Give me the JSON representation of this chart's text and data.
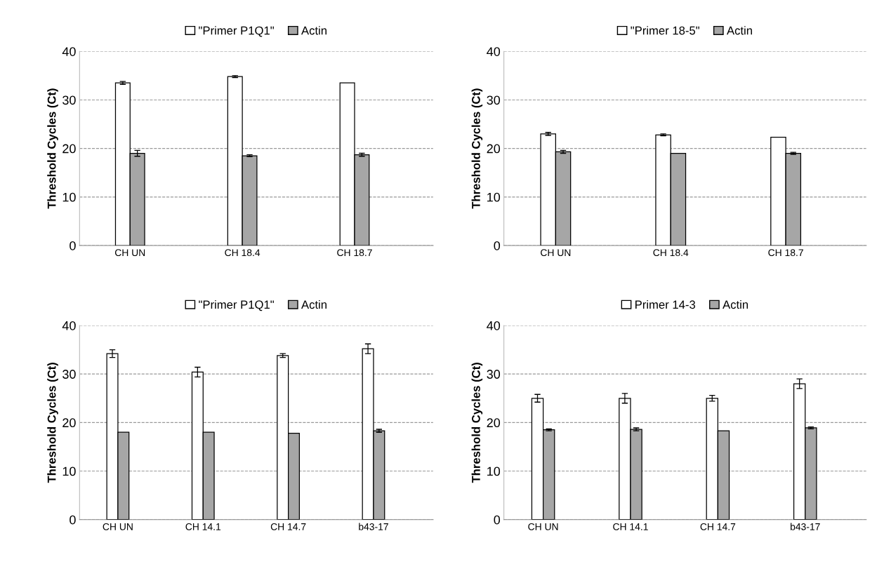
{
  "chart_data": [
    {
      "type": "bar",
      "categories": [
        "CH UN",
        "CH 18.4",
        "CH 18.7"
      ],
      "ylabel": "Threshold Cycles (Ct)",
      "ylim": [
        0,
        40
      ],
      "yticks": [
        0,
        10,
        20,
        30,
        40
      ],
      "grid": "y",
      "legend": "top",
      "series": [
        {
          "name": "\"Primer P1Q1\"",
          "color": "#ffffff",
          "values": [
            33.5,
            34.8,
            33.5
          ],
          "errors": [
            0.3,
            0.2,
            null
          ]
        },
        {
          "name": "Actin",
          "color": "#a6a6a6",
          "values": [
            19.0,
            18.5,
            18.7
          ],
          "errors": [
            0.6,
            0.2,
            0.3
          ]
        }
      ]
    },
    {
      "type": "bar",
      "categories": [
        "CH UN",
        "CH 18.4",
        "CH 18.7"
      ],
      "ylabel": "Threshold Cycles (Ct)",
      "ylim": [
        0,
        40
      ],
      "yticks": [
        0,
        10,
        20,
        30,
        40
      ],
      "grid": "y",
      "legend": "top",
      "series": [
        {
          "name": "\"Primer 18-5\"",
          "color": "#ffffff",
          "values": [
            23.0,
            22.8,
            22.3
          ],
          "errors": [
            0.3,
            0.2,
            null
          ]
        },
        {
          "name": "Actin",
          "color": "#a6a6a6",
          "values": [
            19.3,
            19.0,
            19.0
          ],
          "errors": [
            0.3,
            null,
            0.2
          ]
        }
      ]
    },
    {
      "type": "bar",
      "categories": [
        "CH UN",
        "CH 14.1",
        "CH 14.7",
        "b43-17"
      ],
      "ylabel": "Threshold Cycles (Ct)",
      "ylim": [
        0,
        40
      ],
      "yticks": [
        0,
        10,
        20,
        30,
        40
      ],
      "grid": "y",
      "legend": "top",
      "series": [
        {
          "name": "\"Primer P1Q1\"",
          "color": "#ffffff",
          "values": [
            34.2,
            30.4,
            33.8,
            35.2
          ],
          "errors": [
            0.8,
            1.0,
            0.4,
            1.0
          ]
        },
        {
          "name": "Actin",
          "color": "#a6a6a6",
          "values": [
            18.0,
            18.0,
            17.8,
            18.3
          ],
          "errors": [
            null,
            null,
            null,
            0.3
          ]
        }
      ]
    },
    {
      "type": "bar",
      "categories": [
        "CH UN",
        "CH 14.1",
        "CH 14.7",
        "b43-17"
      ],
      "ylabel": "Threshold Cycles (Ct)",
      "ylim": [
        0,
        40
      ],
      "yticks": [
        0,
        10,
        20,
        30,
        40
      ],
      "grid": "y",
      "legend": "top",
      "series": [
        {
          "name": "Primer 14-3",
          "color": "#ffffff",
          "values": [
            25.0,
            25.0,
            25.0,
            28.0
          ],
          "errors": [
            0.8,
            1.0,
            0.6,
            1.0
          ]
        },
        {
          "name": "Actin",
          "color": "#a6a6a6",
          "values": [
            18.5,
            18.6,
            18.3,
            18.9
          ],
          "errors": [
            0.2,
            0.3,
            null,
            0.2
          ]
        }
      ]
    }
  ]
}
